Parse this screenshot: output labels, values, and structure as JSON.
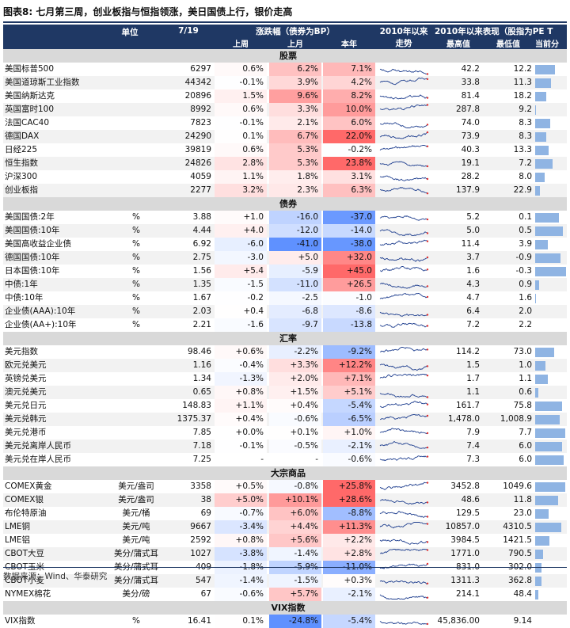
{
  "title": "图表8:  七月第三周，创业板指与恒指领涨，美日国债上行，银价走高",
  "footer": "数据来源：Wind、华泰研究",
  "header": {
    "unit": "单位",
    "date": "7/19",
    "change_group": "涨跌幅（债券为BP）",
    "week": "上周",
    "month": "上月",
    "ytd": "本年",
    "trend_line1": "2010年以来",
    "trend_line2": "走势",
    "since2010": "2010年以来表现（股指为PE  T",
    "high": "最高值",
    "low": "最低值",
    "current": "当前分"
  },
  "chart_data": {
    "type": "table",
    "sections": [
      {
        "name": "股票",
        "rows": [
          {
            "name": "美国标普500",
            "unit": "",
            "value": "6297",
            "week": "0.6%",
            "month": "6.2%",
            "ytd": "7.1%",
            "high": "42.2",
            "low": "12.2",
            "current_pct": 0.62
          },
          {
            "name": "美国道琼斯工业指数",
            "unit": "",
            "value": "44342",
            "week": "-0.1%",
            "month": "3.9%",
            "ytd": "4.2%",
            "high": "33.8",
            "low": "11.3",
            "current_pct": 0.5
          },
          {
            "name": "美国纳斯达克",
            "unit": "",
            "value": "20896",
            "week": "1.5%",
            "month": "9.6%",
            "ytd": "8.2%",
            "high": "81.4",
            "low": "18.2",
            "current_pct": 0.35
          },
          {
            "name": "英国富时100",
            "unit": "",
            "value": "8992",
            "week": "0.6%",
            "month": "3.3%",
            "ytd": "10.0%",
            "high": "287.8",
            "low": "9.2",
            "current_pct": 0.02
          },
          {
            "name": "法国CAC40",
            "unit": "",
            "value": "7823",
            "week": "-0.1%",
            "month": "2.1%",
            "ytd": "6.0%",
            "high": "74.0",
            "low": "8.3",
            "current_pct": 0.48
          },
          {
            "name": "德国DAX",
            "unit": "",
            "value": "24290",
            "week": "0.1%",
            "month": "6.7%",
            "ytd": "22.0%",
            "high": "73.9",
            "low": "8.3",
            "current_pct": 0.36
          },
          {
            "name": "日经225",
            "unit": "",
            "value": "39819",
            "week": "0.6%",
            "month": "5.3%",
            "ytd": "-0.2%",
            "high": "40.3",
            "low": "13.3",
            "current_pct": 0.42
          },
          {
            "name": "恒生指数",
            "unit": "",
            "value": "24826",
            "week": "2.8%",
            "month": "5.3%",
            "ytd": "23.8%",
            "high": "19.1",
            "low": "7.2",
            "current_pct": 0.55
          },
          {
            "name": "沪深300",
            "unit": "",
            "value": "4059",
            "week": "1.1%",
            "month": "1.8%",
            "ytd": "3.1%",
            "high": "28.2",
            "low": "8.0",
            "current_pct": 0.3
          },
          {
            "name": "创业板指",
            "unit": "",
            "value": "2277",
            "week": "3.2%",
            "month": "2.3%",
            "ytd": "6.3%",
            "high": "137.9",
            "low": "22.9",
            "current_pct": 0.15
          }
        ]
      },
      {
        "name": "债券",
        "rows": [
          {
            "name": "美国国债:2年",
            "unit": "%",
            "value": "3.88",
            "week": "+1.0",
            "month": "-16.0",
            "ytd": "-37.0",
            "high": "5.2",
            "low": "0.1",
            "current_pct": 0.74
          },
          {
            "name": "美国国债:10年",
            "unit": "%",
            "value": "4.44",
            "week": "+4.0",
            "month": "-12.0",
            "ytd": "-14.0",
            "high": "5.0",
            "low": "0.5",
            "current_pct": 0.87
          },
          {
            "name": "美国高收益企业债",
            "unit": "%",
            "value": "6.92",
            "week": "-6.0",
            "month": "-41.0",
            "ytd": "-38.0",
            "high": "11.4",
            "low": "3.9",
            "current_pct": 0.4
          },
          {
            "name": "德国国债:10年",
            "unit": "%",
            "value": "2.75",
            "week": "-3.0",
            "month": "+5.0",
            "ytd": "+32.0",
            "high": "3.7",
            "low": "-0.9",
            "current_pct": 0.79
          },
          {
            "name": "日本国债:10年",
            "unit": "%",
            "value": "1.56",
            "week": "+5.4",
            "month": "-5.9",
            "ytd": "+45.0",
            "high": "1.6",
            "low": "-0.3",
            "current_pct": 0.98
          },
          {
            "name": "中债:1年",
            "unit": "%",
            "value": "1.35",
            "week": "-1.5",
            "month": "-11.0",
            "ytd": "+26.5",
            "high": "4.3",
            "low": "0.9",
            "current_pct": 0.13
          },
          {
            "name": "中债:10年",
            "unit": "%",
            "value": "1.67",
            "week": "-0.2",
            "month": "-2.5",
            "ytd": "-1.0",
            "high": "4.7",
            "low": "1.6",
            "current_pct": 0.02
          },
          {
            "name": "企业债(AAA):10年",
            "unit": "%",
            "value": "2.03",
            "week": "+0.4",
            "month": "-6.8",
            "ytd": "-8.6",
            "high": "6.4",
            "low": "2.0",
            "current_pct": 0.01
          },
          {
            "name": "企业债(AA+):10年",
            "unit": "%",
            "value": "2.21",
            "week": "-1.6",
            "month": "-9.7",
            "ytd": "-13.8",
            "high": "7.2",
            "low": "2.2",
            "current_pct": 0.01
          }
        ]
      },
      {
        "name": "汇率",
        "rows": [
          {
            "name": "美元指数",
            "unit": "",
            "value": "98.46",
            "week": "+0.6%",
            "month": "-2.2%",
            "ytd": "-9.2%",
            "high": "114.2",
            "low": "73.0",
            "current_pct": 0.6
          },
          {
            "name": "欧元兑美元",
            "unit": "",
            "value": "1.16",
            "week": "-0.4%",
            "month": "+3.3%",
            "ytd": "+12.2%",
            "high": "1.5",
            "low": "1.0",
            "current_pct": 0.32
          },
          {
            "name": "英镑兑美元",
            "unit": "",
            "value": "1.34",
            "week": "-1.3%",
            "month": "+2.0%",
            "ytd": "+7.1%",
            "high": "1.7",
            "low": "1.1",
            "current_pct": 0.4
          },
          {
            "name": "澳元兑美元",
            "unit": "",
            "value": "0.65",
            "week": "+0.8%",
            "month": "+1.5%",
            "ytd": "+5.1%",
            "high": "1.1",
            "low": "0.6",
            "current_pct": 0.1
          },
          {
            "name": "美元兑日元",
            "unit": "",
            "value": "148.83",
            "week": "+1.1%",
            "month": "+0.4%",
            "ytd": "-5.4%",
            "high": "161.7",
            "low": "75.8",
            "current_pct": 0.85
          },
          {
            "name": "美元兑韩元",
            "unit": "",
            "value": "1375.37",
            "week": "+0.4%",
            "month": "-0.6%",
            "ytd": "-6.5%",
            "high": "1,478.0",
            "low": "1,008.9",
            "current_pct": 0.78
          },
          {
            "name": "美元兑港币",
            "unit": "",
            "value": "7.85",
            "week": "+0.0%",
            "month": "+0.1%",
            "ytd": "+1.0%",
            "high": "7.9",
            "low": "7.7",
            "current_pct": 0.95
          },
          {
            "name": "美元兑离岸人民币",
            "unit": "",
            "value": "7.18",
            "week": "-0.1%",
            "month": "-0.5%",
            "ytd": "-2.1%",
            "high": "7.4",
            "low": "6.0",
            "current_pct": 0.84
          },
          {
            "name": "美元兑在岸人民币",
            "unit": "",
            "value": "7.25",
            "week": "-",
            "month": "-",
            "ytd": "-0.6%",
            "high": "7.3",
            "low": "6.0",
            "current_pct": 0.9
          }
        ]
      },
      {
        "name": "大宗商品",
        "rows": [
          {
            "name": "COMEX黄金",
            "unit": "美元/盎司",
            "value": "3358",
            "week": "+0.5%",
            "month": "-0.8%",
            "ytd": "+25.8%",
            "high": "3452.8",
            "low": "1049.6",
            "current_pct": 0.96
          },
          {
            "name": "COMEX银",
            "unit": "美元/盎司",
            "value": "38",
            "week": "+5.0%",
            "month": "+10.1%",
            "ytd": "+28.6%",
            "high": "48.6",
            "low": "11.8",
            "current_pct": 0.73
          },
          {
            "name": "布伦特原油",
            "unit": "美元/桶",
            "value": "69",
            "week": "-0.7%",
            "month": "+6.0%",
            "ytd": "-8.8%",
            "high": "129.5",
            "low": "23.0",
            "current_pct": 0.43
          },
          {
            "name": "LME铜",
            "unit": "美元/吨",
            "value": "9667",
            "week": "-3.4%",
            "month": "+4.4%",
            "ytd": "+11.3%",
            "high": "10857.0",
            "low": "4310.5",
            "current_pct": 0.82
          },
          {
            "name": "LME铝",
            "unit": "美元/吨",
            "value": "2592",
            "week": "+0.8%",
            "month": "+5.6%",
            "ytd": "+2.2%",
            "high": "3984.5",
            "low": "1421.5",
            "current_pct": 0.46
          },
          {
            "name": "CBOT大豆",
            "unit": "美分/蒲式耳",
            "value": "1027",
            "week": "-3.8%",
            "month": "-1.4%",
            "ytd": "+2.8%",
            "high": "1771.0",
            "low": "790.5",
            "current_pct": 0.24
          },
          {
            "name": "CBOT玉米",
            "unit": "美分/蒲式耳",
            "value": "409",
            "week": "-1.8%",
            "month": "-5.9%",
            "ytd": "-11.0%",
            "high": "831.0",
            "low": "302.0",
            "current_pct": 0.2
          },
          {
            "name": "CBOT小麦",
            "unit": "美分/蒲式耳",
            "value": "547",
            "week": "-1.4%",
            "month": "-1.5%",
            "ytd": "+0.3%",
            "high": "1311.3",
            "low": "362.8",
            "current_pct": 0.19
          },
          {
            "name": "NYMEX棉花",
            "unit": "美分/磅",
            "value": "67",
            "week": "-0.6%",
            "month": "+5.7%",
            "ytd": "-2.1%",
            "high": "214.1",
            "low": "48.4",
            "current_pct": 0.11
          }
        ]
      },
      {
        "name": "VIX指数",
        "rows": [
          {
            "name": "VIX指数",
            "unit": "%",
            "value": "16.41",
            "week": "0.1%",
            "month": "-24.8%",
            "ytd": "-5.4%",
            "high": "45,836.00",
            "low": "9.14",
            "current_pct": 0.0
          }
        ]
      }
    ]
  }
}
